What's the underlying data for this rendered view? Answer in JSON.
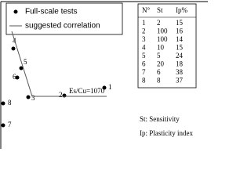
{
  "chart_data": {
    "type": "scatter",
    "xlim": [
      0,
      264
    ],
    "ylim": [
      0,
      185
    ],
    "series": [
      {
        "name": "Full-scale tests",
        "color": "#000000",
        "x": [
          132,
          81,
          35,
          16,
          26,
          21,
          3,
          3
        ],
        "values": [
          73,
          63,
          61,
          123,
          98,
          86,
          25,
          53
        ],
        "point_labels": [
          "1",
          "2",
          "3",
          "4",
          "5",
          "6",
          "7",
          "8"
        ]
      },
      {
        "name": "suggested correlation",
        "type": "line",
        "color": "#555555",
        "x": [
          14,
          40,
          135
        ],
        "values": [
          145,
          62,
          62
        ]
      }
    ],
    "annotation": "Es/Cu=1070",
    "table": {
      "header": [
        "N°",
        "St",
        "Ip%"
      ],
      "rows": [
        [
          1,
          2,
          15
        ],
        [
          2,
          100,
          16
        ],
        [
          3,
          100,
          14
        ],
        [
          4,
          10,
          15
        ],
        [
          5,
          5,
          24
        ],
        [
          6,
          20,
          18
        ],
        [
          7,
          6,
          38
        ],
        [
          8,
          8,
          37
        ]
      ]
    },
    "notes": [
      "St: Sensitivity",
      "Ip: Plasticity index"
    ]
  }
}
